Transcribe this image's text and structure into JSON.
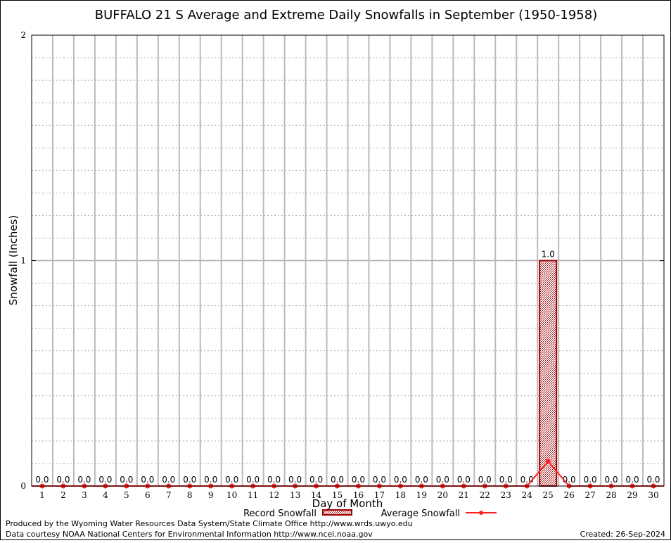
{
  "chart_data": {
    "type": "bar",
    "title": "BUFFALO 21 S Average and Extreme Daily Snowfalls in September (1950-1958)",
    "xlabel": "Day of Month",
    "ylabel": "Snowfall (Inches)",
    "ylim": [
      0,
      2
    ],
    "yticks": [
      "0",
      "1",
      "2"
    ],
    "grid": true,
    "categories": [
      "1",
      "2",
      "3",
      "4",
      "5",
      "6",
      "7",
      "8",
      "9",
      "10",
      "11",
      "12",
      "13",
      "14",
      "15",
      "16",
      "17",
      "18",
      "19",
      "20",
      "21",
      "22",
      "23",
      "24",
      "25",
      "26",
      "27",
      "28",
      "29",
      "30"
    ],
    "series": [
      {
        "name": "Record Snowfall",
        "type": "bar",
        "color": "#a00000",
        "values": [
          0,
          0,
          0,
          0,
          0,
          0,
          0,
          0,
          0,
          0,
          0,
          0,
          0,
          0,
          0,
          0,
          0,
          0,
          0,
          0,
          0,
          0,
          0,
          0,
          1.0,
          0,
          0,
          0,
          0,
          0
        ],
        "labels": [
          "0.0",
          "0.0",
          "0.0",
          "0.0",
          "0.0",
          "0.0",
          "0.0",
          "0.0",
          "0.0",
          "0.0",
          "0.0",
          "0.0",
          "0.0",
          "0.0",
          "0.0",
          "0.0",
          "0.0",
          "0.0",
          "0.0",
          "0.0",
          "0.0",
          "0.0",
          "0.0",
          "0.0",
          "1.0",
          "0.0",
          "0.0",
          "0.0",
          "0.0",
          "0.0"
        ]
      },
      {
        "name": "Average Snowfall",
        "type": "line",
        "color": "#ff2020",
        "values": [
          0,
          0,
          0,
          0,
          0,
          0,
          0,
          0,
          0,
          0,
          0,
          0,
          0,
          0,
          0,
          0,
          0,
          0,
          0,
          0,
          0,
          0,
          0,
          0,
          0.11,
          0,
          0,
          0,
          0,
          0
        ]
      }
    ],
    "legend": "bottom"
  },
  "footer": {
    "produced_by": "Produced by the Wyoming Water Resources Data System/State Climate Office http://www.wrds.uwyo.edu",
    "data_courtesy": "Data courtesy NOAA National Centers for Environmental Information http://www.ncei.noaa.gov",
    "created": "Created: 26-Sep-2024"
  }
}
